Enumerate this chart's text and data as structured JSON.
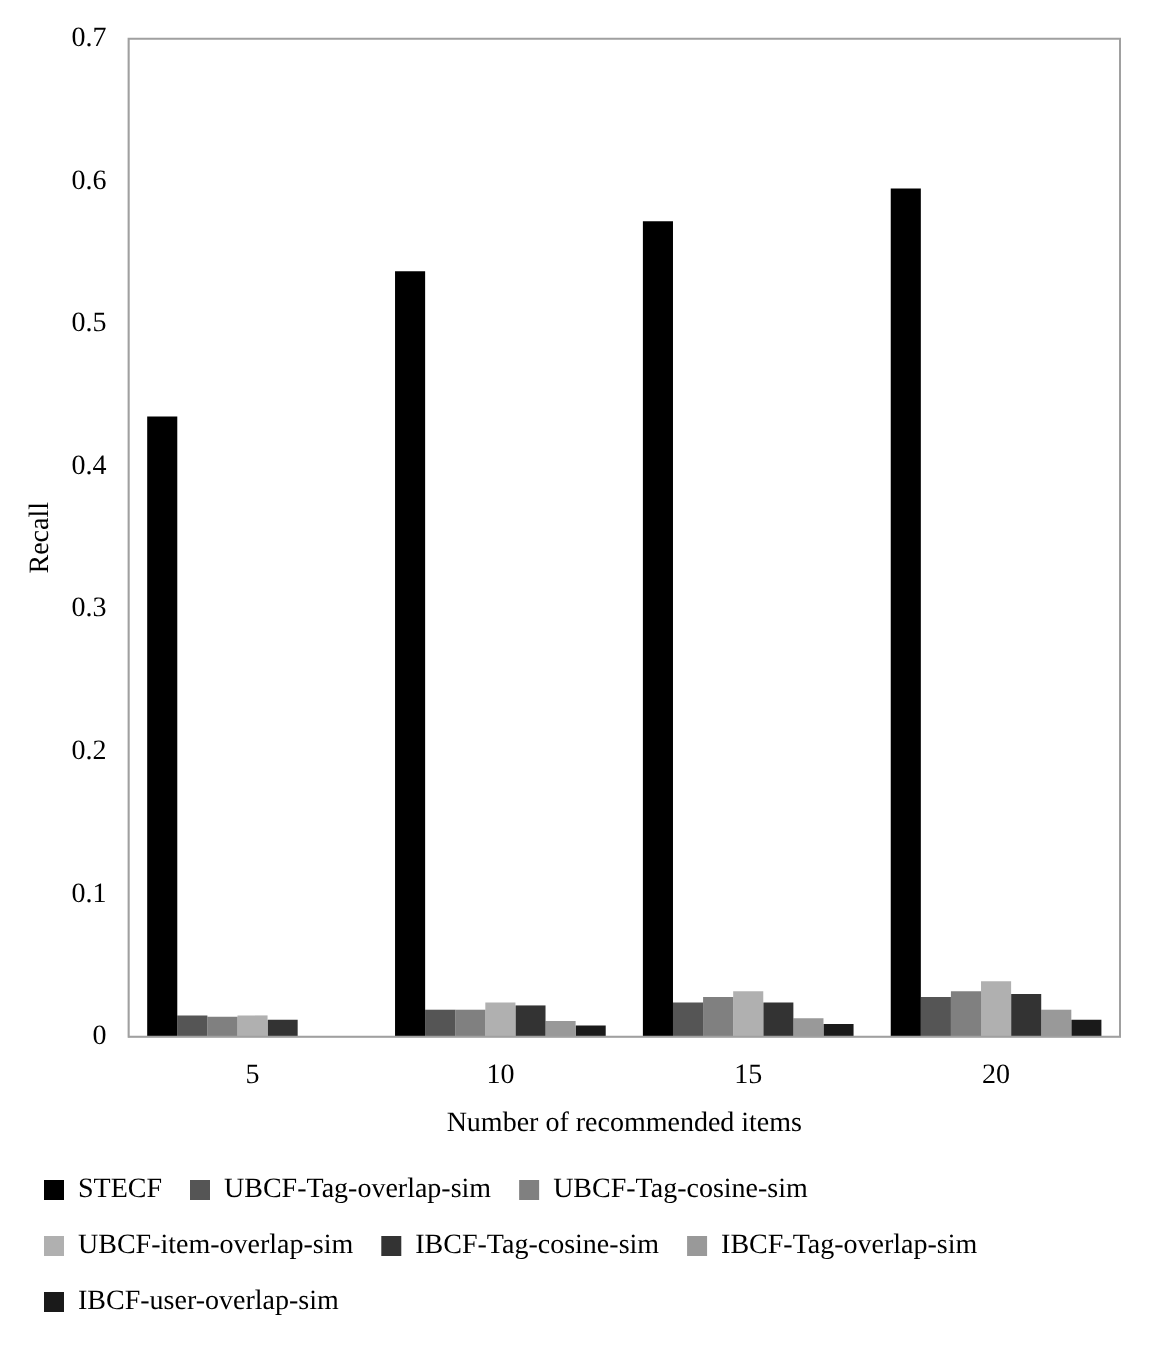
{
  "chart_data": {
    "type": "bar",
    "xlabel": "Number of recommended items",
    "ylabel": "Recall",
    "categories": [
      "5",
      "10",
      "15",
      "20"
    ],
    "series": [
      {
        "name": "STECF",
        "color": "#000000",
        "values": [
          0.435,
          0.537,
          0.572,
          0.595
        ]
      },
      {
        "name": "UBCF-Tag-overlap-sim",
        "color": "#555555",
        "values": [
          0.015,
          0.019,
          0.024,
          0.028
        ]
      },
      {
        "name": "UBCF-Tag-cosine-sim",
        "color": "#808080",
        "values": [
          0.014,
          0.019,
          0.028,
          0.032
        ]
      },
      {
        "name": "UBCF-item-overlap-sim",
        "color": "#b0b0b0",
        "values": [
          0.015,
          0.024,
          0.032,
          0.039
        ]
      },
      {
        "name": "IBCF-Tag-cosine-sim",
        "color": "#333333",
        "values": [
          0.012,
          0.022,
          0.024,
          0.03
        ]
      },
      {
        "name": "IBCF-Tag-overlap-sim",
        "color": "#999999",
        "values": [
          0,
          0.011,
          0.013,
          0.019
        ]
      },
      {
        "name": "IBCF-user-overlap-sim",
        "color": "#1a1a1a",
        "values": [
          0,
          0.008,
          0.009,
          0.012
        ]
      }
    ],
    "ylim": [
      0,
      0.7
    ],
    "yticks": [
      0,
      0.1,
      0.2,
      0.3,
      0.4,
      0.5,
      0.6,
      0.7
    ],
    "grid": false,
    "legend": "bottom"
  }
}
